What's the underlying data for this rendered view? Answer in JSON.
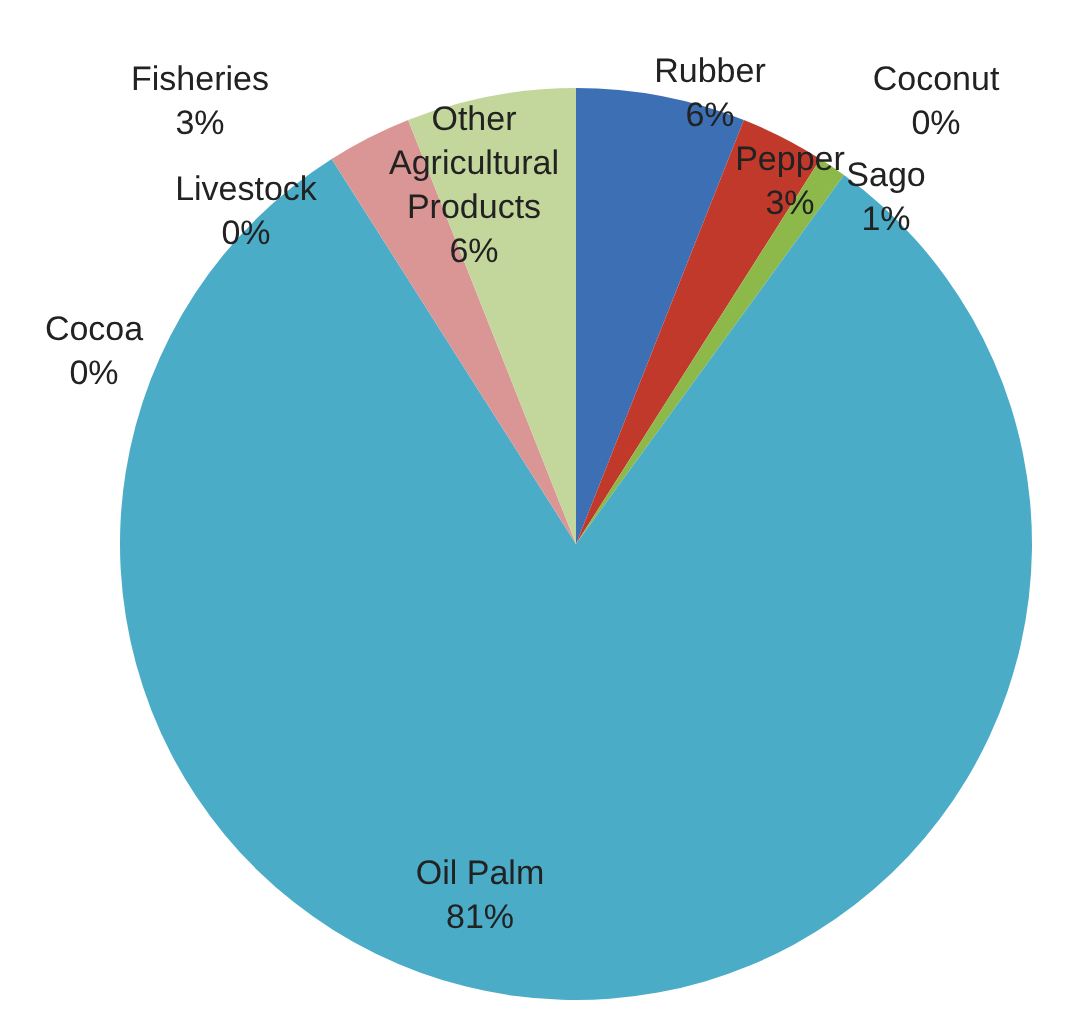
{
  "chart_data": {
    "type": "pie",
    "categories": [
      "Rubber",
      "Pepper",
      "Sago",
      "Coconut",
      "Oil Palm",
      "Cocoa",
      "Livestock",
      "Fisheries",
      "Other Agricultural Products"
    ],
    "values": [
      6,
      3,
      1,
      0,
      81,
      0,
      0,
      3,
      6
    ],
    "value_labels": [
      "6%",
      "3%",
      "1%",
      "0%",
      "81%",
      "0%",
      "0%",
      "3%",
      "6%"
    ],
    "colors": [
      "#3d6fb5",
      "#c0392b",
      "#8db84a",
      "#7f62a3",
      "#4aacc6",
      "#f79646",
      "#2c4d75",
      "#d99694",
      "#c3d69b"
    ],
    "legend": false
  }
}
